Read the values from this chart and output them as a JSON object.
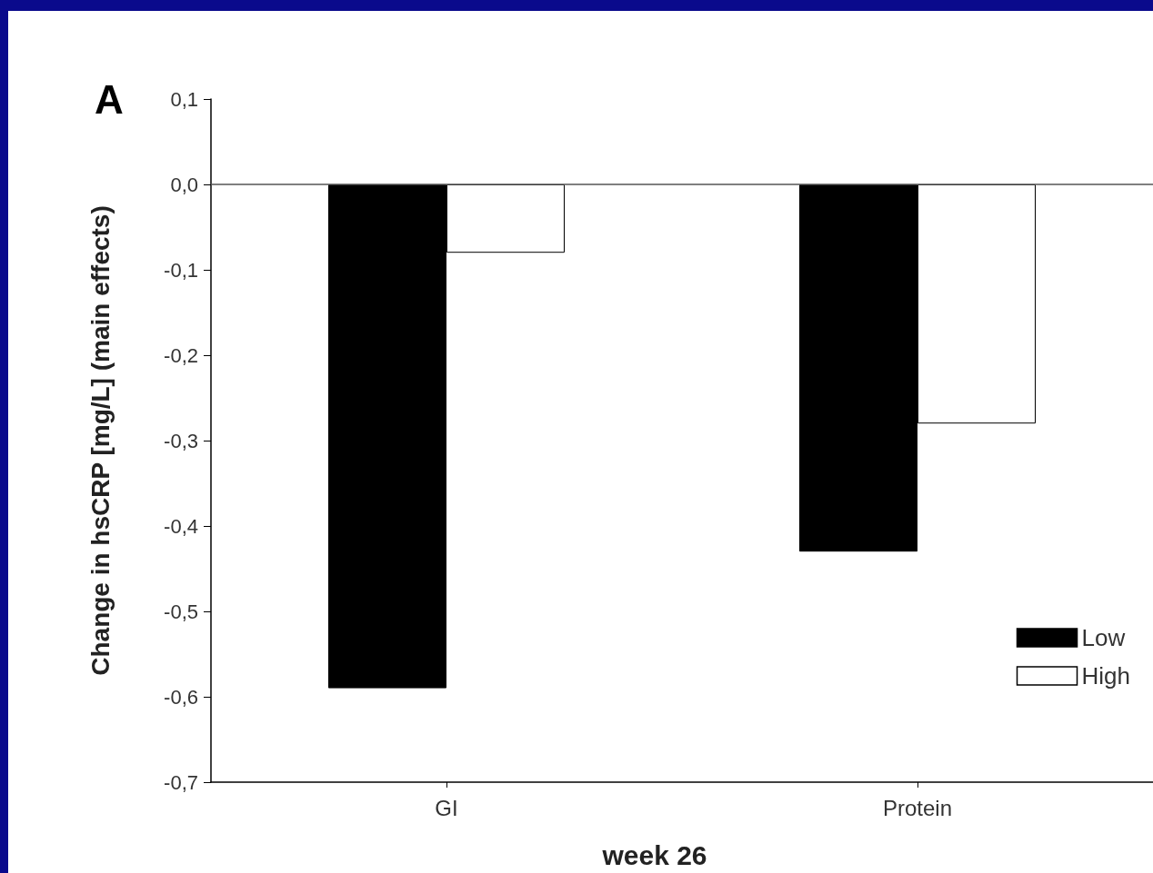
{
  "chart_data": {
    "type": "bar",
    "xlabel": "week 26",
    "ylabel": "Change in hsCRP [mg/L] (main effects)",
    "annotations": [
      "A"
    ],
    "categories": [
      "GI",
      "Protein"
    ],
    "series": [
      {
        "name": "Low",
        "color": "#000000",
        "values": [
          -0.59,
          -0.43
        ]
      },
      {
        "name": "High",
        "color": "#ffffff",
        "values": [
          -0.08,
          -0.28
        ]
      }
    ],
    "ylim": [
      -0.7,
      0.1
    ],
    "yticks": [
      {
        "value": -0.7,
        "label": "-0,7"
      },
      {
        "value": -0.6,
        "label": "-0,6"
      },
      {
        "value": -0.5,
        "label": "-0,5"
      },
      {
        "value": -0.4,
        "label": "-0,4"
      },
      {
        "value": -0.3,
        "label": "-0,3"
      },
      {
        "value": -0.2,
        "label": "-0,2"
      },
      {
        "value": -0.1,
        "label": "-0,1"
      },
      {
        "value": 0,
        "label": "0,0"
      },
      {
        "value": 0.1,
        "label": "0,1"
      }
    ],
    "ref_lines": [
      {
        "axis": "y",
        "value": 0,
        "color": "#555555"
      }
    ],
    "legend": "bottom right"
  }
}
